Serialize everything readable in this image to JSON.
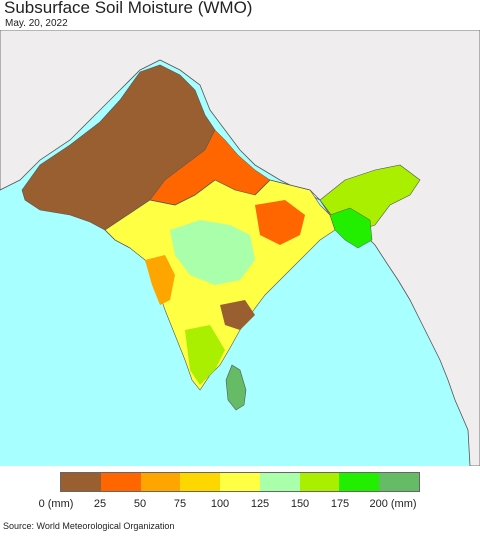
{
  "title": "Subsurface Soil Moisture (WMO)",
  "date": "May. 20, 2022",
  "source": "Source: World Meteorological Organization",
  "legend": {
    "colors": [
      "#9a5f30",
      "#ff6600",
      "#ffa500",
      "#ffd700",
      "#ffff44",
      "#aaffaa",
      "#aaee00",
      "#22ee00",
      "#66bb66"
    ],
    "labels": [
      "0 (mm)",
      "25",
      "50",
      "75",
      "100",
      "125",
      "150",
      "175",
      "200 (mm)"
    ]
  },
  "colors": {
    "ocean": "#a8ffff",
    "land_outside": "#f0edef",
    "border": "#555555"
  }
}
